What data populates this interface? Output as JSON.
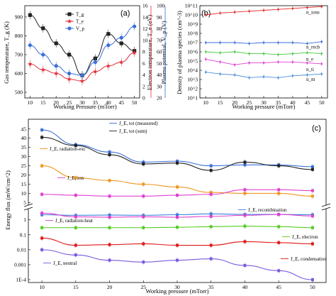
{
  "figure": {
    "panel_a": "(a)",
    "panel_b": "(b)",
    "panel_c": "(c)"
  },
  "chart_data": [
    {
      "id": "a",
      "type": "line",
      "x": [
        10,
        15,
        20,
        25,
        30,
        35,
        40,
        45,
        50
      ],
      "xlabel": "Working Pressure (mTorr)",
      "ylabel_left": "Gas temperature, T_g (K)",
      "ylabel_right1": "Electron temperature, T_e (eV)",
      "ylabel_right2": "Plasma potential, V_p (V)",
      "xticks": [
        "10",
        "15",
        "20",
        "25",
        "30",
        "35",
        "40",
        "45",
        "50"
      ],
      "yticks_left": [
        "500",
        "600",
        "700",
        "800",
        "900"
      ],
      "yticks_right1": [
        "0",
        "2",
        "4",
        "6",
        "8",
        "10",
        "12",
        "14",
        "16"
      ],
      "yticks_right2": [
        "20",
        "30",
        "40",
        "50",
        "60",
        "70",
        "80",
        "90",
        "100"
      ],
      "ylim_left": [
        470,
        960
      ],
      "series": [
        {
          "name": "T_g",
          "color": "#222222",
          "marker": "square",
          "values": [
            910,
            840,
            760,
            700,
            590,
            680,
            810,
            760,
            720
          ]
        },
        {
          "name": "T_e",
          "color": "#e0303c",
          "marker": "star",
          "values": [
            650,
            620,
            600,
            570,
            560,
            610,
            640,
            660,
            710
          ]
        },
        {
          "name": "V_p",
          "color": "#3a6fd8",
          "marker": "circle",
          "values": [
            750,
            700,
            640,
            600,
            590,
            660,
            750,
            790,
            850
          ]
        }
      ]
    },
    {
      "id": "b",
      "type": "line",
      "x": [
        10,
        15,
        20,
        25,
        30,
        35,
        40,
        45,
        50
      ],
      "xlabel": "Working pressure (mTorr)",
      "ylabel": "Density of plasma species (cm^-3)",
      "yscale": "log",
      "ylim": [
        1,
        10
      ],
      "yticks": [
        "10^1",
        "10^2",
        "10^3",
        "10^4",
        "10^5",
        "10^6",
        "10^7",
        "10^8",
        "10^9",
        "10^10",
        "10^11"
      ],
      "series": [
        {
          "name": "n_ions",
          "color": "#e02a2a",
          "values": [
            10.0,
            10.2,
            10.3,
            10.4,
            10.5,
            10.6,
            10.7,
            10.8,
            10.9
          ]
        },
        {
          "name": "n_recb",
          "color": "#3a6fd8",
          "values": [
            7.0,
            7.0,
            7.0,
            6.9,
            7.0,
            7.0,
            7.0,
            6.9,
            7.1
          ]
        },
        {
          "name": "n_e",
          "color": "#45c845",
          "values": [
            6.0,
            5.9,
            6.0,
            5.8,
            5.8,
            5.7,
            5.8,
            5.9,
            5.8
          ]
        },
        {
          "name": "n_ti",
          "color": "#e040d0",
          "values": [
            5.2,
            4.9,
            4.6,
            4.8,
            4.8,
            4.9,
            4.9,
            4.8,
            4.7
          ]
        },
        {
          "name": "n_m",
          "color": "#4a8fd8",
          "values": [
            3.8,
            3.6,
            3.5,
            3.2,
            3.3,
            3.2,
            3.4,
            3.5,
            3.6
          ]
        }
      ]
    },
    {
      "id": "c",
      "type": "line",
      "x": [
        10,
        15,
        20,
        25,
        30,
        35,
        40,
        45,
        50
      ],
      "xlabel": "Working pressure (mTorr)",
      "ylabel": "Energy flux (mW/cm^2)",
      "xticks": [
        "10",
        "15",
        "20",
        "25",
        "30",
        "35",
        "40",
        "45",
        "50"
      ],
      "yticks": [
        "1E-4",
        "0.001",
        "0.01",
        "0.1",
        "1",
        "5",
        "10",
        "15",
        "20",
        "25",
        "30",
        "35",
        "40",
        "45"
      ],
      "upper_ylim": [
        4,
        48
      ],
      "lower_ylim_log": [
        0.0001,
        5
      ],
      "series": [
        {
          "name": "J_E, tot (measured)",
          "color": "#3a6fd8",
          "section": "upper",
          "values": [
            44.5,
            36.5,
            32.5,
            27,
            27.5,
            25,
            25.5,
            25.5,
            24.5
          ]
        },
        {
          "name": "J_E, tot (sum)",
          "color": "#222222",
          "section": "upper",
          "values": [
            40.5,
            36,
            31,
            26,
            26.5,
            22.5,
            27,
            25,
            23
          ]
        },
        {
          "name": "J_E, radiation-exc",
          "color": "#f0961e",
          "section": "upper",
          "values": [
            25,
            18.5,
            17,
            15,
            13.5,
            10.5,
            10,
            10,
            8.5
          ]
        },
        {
          "name": "J_E, ion",
          "color": "#e040d0",
          "section": "upper",
          "values": [
            9.5,
            9,
            8.5,
            8.5,
            9,
            9.5,
            12,
            12,
            11.5
          ]
        },
        {
          "name": "J_E, recombination",
          "color": "#3a7fd8",
          "section": "lower",
          "values": [
            2.2,
            2.0,
            2.1,
            2.0,
            2.2,
            2.5,
            2.3,
            2.3,
            2.2
          ]
        },
        {
          "name": "J_E, radiation-heat",
          "color": "#e040d0",
          "section": "lower",
          "values": [
            2.8,
            1.6,
            1.5,
            1.6,
            1.5,
            1.7,
            2.0,
            2.3,
            1.8
          ]
        },
        {
          "name": "J_E, electron",
          "color": "#55cc22",
          "section": "lower",
          "values": [
            0.3,
            0.3,
            0.3,
            0.3,
            0.32,
            0.35,
            0.38,
            0.35,
            0.3
          ]
        },
        {
          "name": "J_E, condensation",
          "color": "#e01a1a",
          "section": "lower",
          "values": [
            0.06,
            0.02,
            0.022,
            0.025,
            0.02,
            0.02,
            0.035,
            0.03,
            0.025
          ]
        },
        {
          "name": "J_E, neutral",
          "color": "#7a5ae0",
          "section": "lower",
          "values": [
            0.01,
            0.0045,
            0.002,
            0.0015,
            0.002,
            0.0025,
            0.0009,
            0.0004,
            0.0001
          ]
        }
      ]
    }
  ]
}
